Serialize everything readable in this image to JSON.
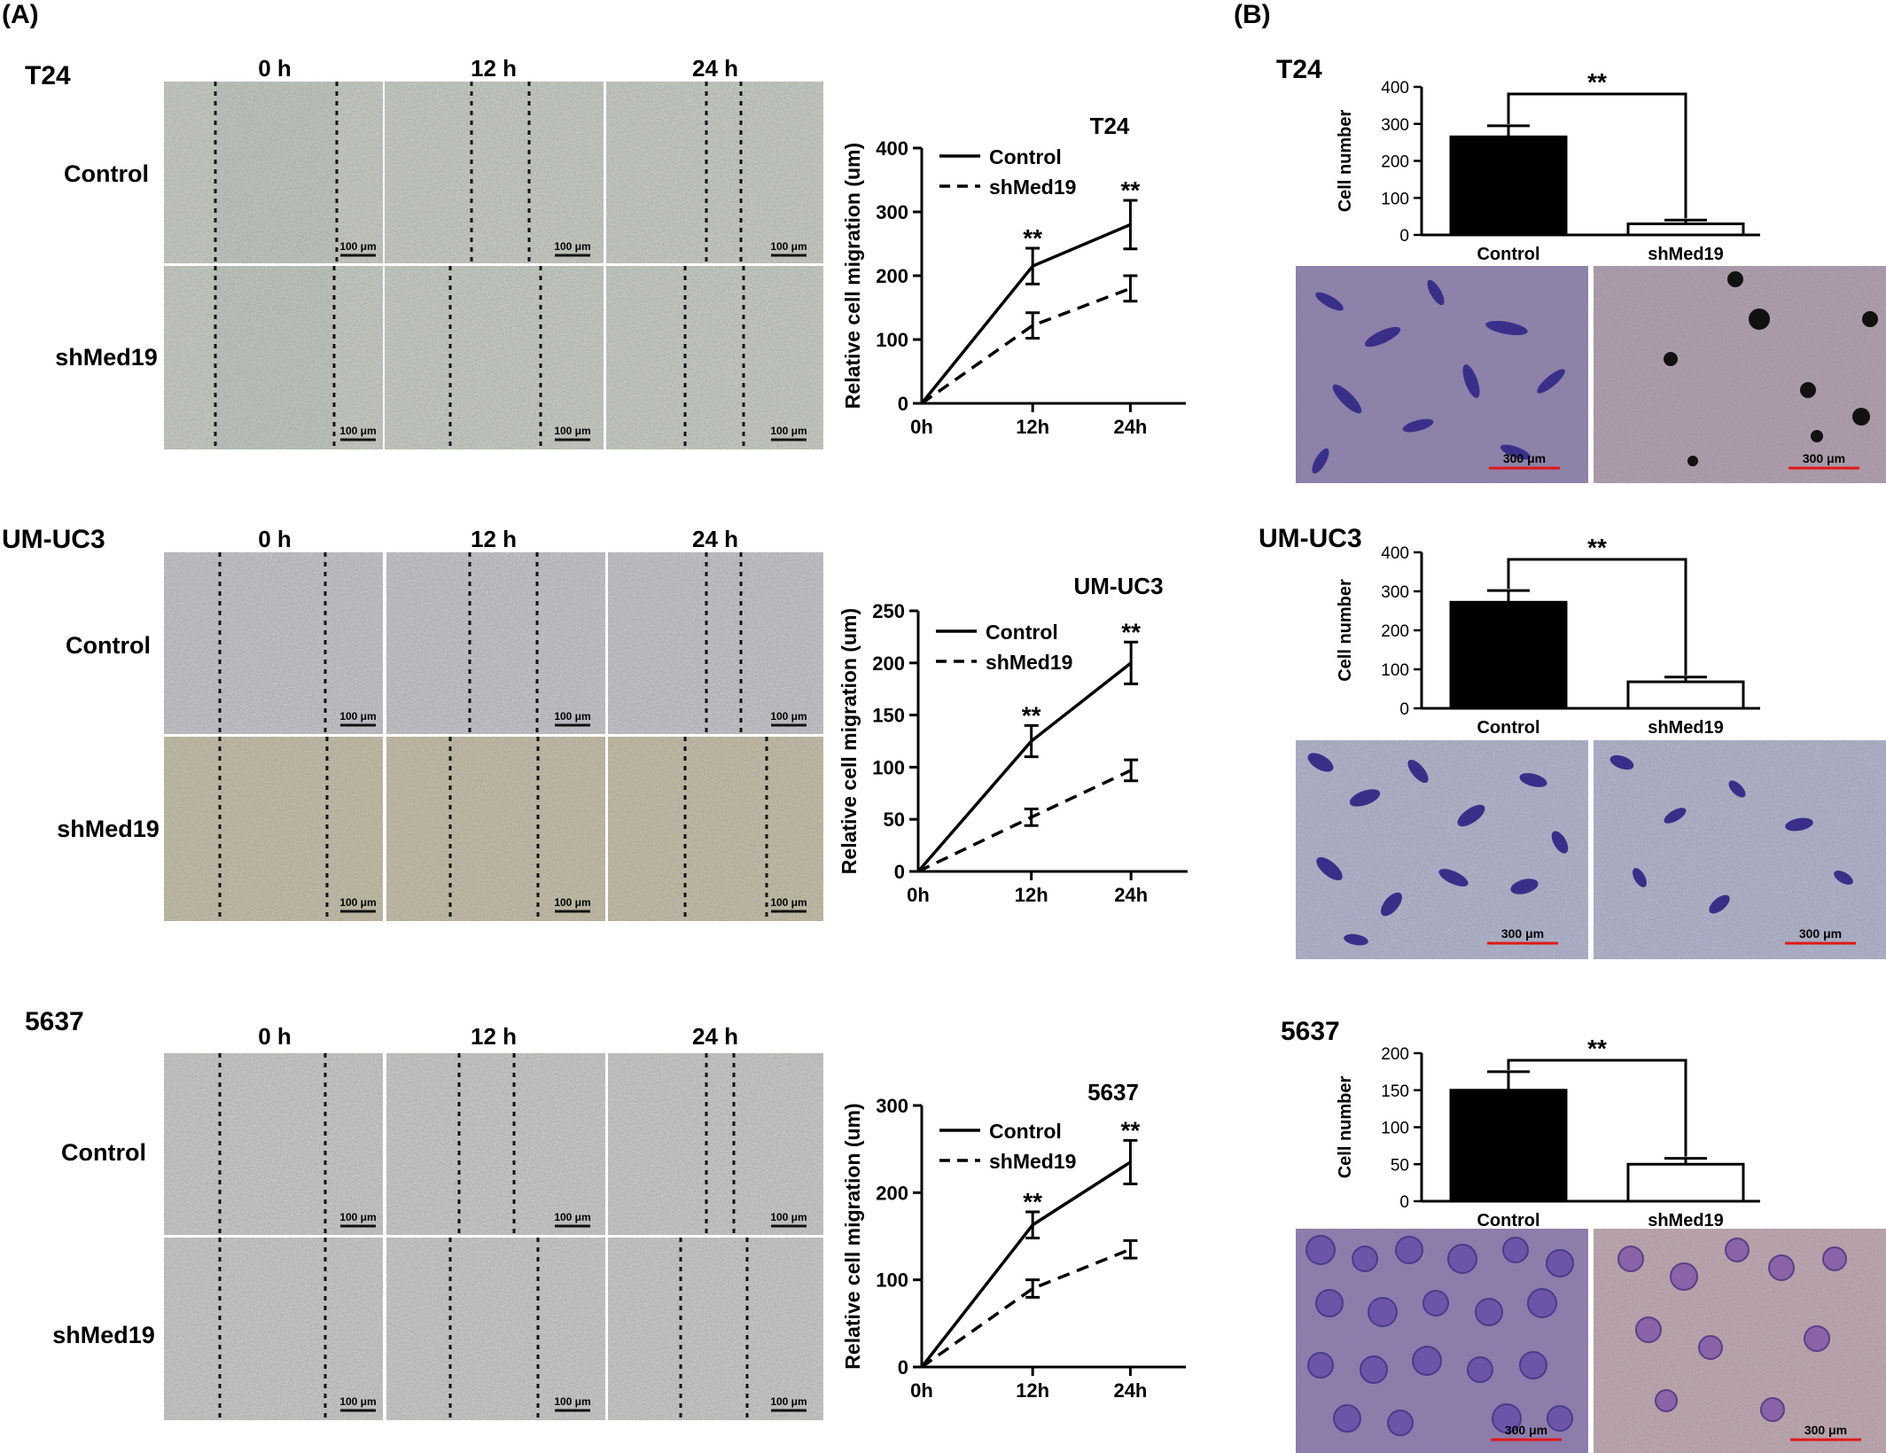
{
  "panel_labels": {
    "a": "(A)",
    "b": "(B)"
  },
  "wound_timepoints": [
    "0 h",
    "12 h",
    "24 h"
  ],
  "conditions": [
    "Control",
    "shMed19"
  ],
  "scale_bar_wound": "100 μm",
  "scale_bar_transwell": "300 μm",
  "colors": {
    "t24_wound": "#ccd3c8",
    "t24_wound_gap": "#c4cdc4",
    "umuc3_ctrl": "#c9cbd0",
    "umuc3_sh": "#c9c3a8",
    "w5637": "#cfd0cd",
    "t24_tw_ctrl": "#8f7fb5",
    "t24_tw_sh": "#b6a0b4",
    "umuc3_tw": "#b4b8d6",
    "w5637_tw_ctrl": "#8e78b8",
    "w5637_tw_sh": "#c6aab6",
    "stain_dark": "#3a2f88",
    "scale_red": "#e01818"
  },
  "cell_lines": [
    {
      "name": "T24"
    },
    {
      "name": "UM-UC3"
    },
    {
      "name": "5637"
    }
  ],
  "chart_data": [
    {
      "type": "line",
      "title": "T24",
      "x": [
        "0h",
        "12h",
        "24h"
      ],
      "ylabel": "Relative cell migration (um)",
      "ylim": [
        0,
        400
      ],
      "yticks": [
        0,
        100,
        200,
        300,
        400
      ],
      "series": [
        {
          "name": "Control",
          "values": [
            0,
            215,
            280
          ],
          "errors": [
            0,
            28,
            38
          ],
          "style": "solid"
        },
        {
          "name": "shMed19",
          "values": [
            0,
            122,
            180
          ],
          "errors": [
            0,
            20,
            20
          ],
          "style": "dashed"
        }
      ],
      "annotations": [
        {
          "x": "12h",
          "text": "**"
        },
        {
          "x": "24h",
          "text": "**"
        }
      ],
      "legend": "top-left"
    },
    {
      "type": "line",
      "title": "UM-UC3",
      "x": [
        "0h",
        "12h",
        "24h"
      ],
      "ylabel": "Relative cell migration (um)",
      "ylim": [
        0,
        250
      ],
      "yticks": [
        0,
        50,
        100,
        150,
        200,
        250
      ],
      "series": [
        {
          "name": "Control",
          "values": [
            0,
            125,
            200
          ],
          "errors": [
            0,
            15,
            20
          ],
          "style": "solid"
        },
        {
          "name": "shMed19",
          "values": [
            0,
            52,
            97
          ],
          "errors": [
            0,
            8,
            10
          ],
          "style": "dashed"
        }
      ],
      "annotations": [
        {
          "x": "12h",
          "text": "**"
        },
        {
          "x": "24h",
          "text": "**"
        }
      ],
      "legend": "top-left"
    },
    {
      "type": "line",
      "title": "5637",
      "x": [
        "0h",
        "12h",
        "24h"
      ],
      "ylabel": "Relative cell migration (um)",
      "ylim": [
        0,
        300
      ],
      "yticks": [
        0,
        100,
        200,
        300
      ],
      "series": [
        {
          "name": "Control",
          "values": [
            0,
            163,
            235
          ],
          "errors": [
            0,
            15,
            25
          ],
          "style": "solid"
        },
        {
          "name": "shMed19",
          "values": [
            0,
            90,
            135
          ],
          "errors": [
            0,
            10,
            10
          ],
          "style": "dashed"
        }
      ],
      "annotations": [
        {
          "x": "12h",
          "text": "**"
        },
        {
          "x": "24h",
          "text": "**"
        }
      ],
      "legend": "top-left"
    },
    {
      "type": "bar",
      "title": "",
      "categories": [
        "Control",
        "shMed19"
      ],
      "values": [
        265,
        30
      ],
      "errors": [
        30,
        10
      ],
      "ylabel": "Cell number",
      "ylim": [
        0,
        400
      ],
      "yticks": [
        0,
        100,
        200,
        300,
        400
      ],
      "fills": [
        "#000000",
        "#ffffff"
      ],
      "significance": "**"
    },
    {
      "type": "bar",
      "title": "",
      "categories": [
        "Control",
        "shMed19"
      ],
      "values": [
        272,
        68
      ],
      "errors": [
        30,
        12
      ],
      "ylabel": "Cell number",
      "ylim": [
        0,
        400
      ],
      "yticks": [
        0,
        100,
        200,
        300,
        400
      ],
      "fills": [
        "#000000",
        "#ffffff"
      ],
      "significance": "**"
    },
    {
      "type": "bar",
      "title": "",
      "categories": [
        "Control",
        "shMed19"
      ],
      "values": [
        150,
        50
      ],
      "errors": [
        25,
        8
      ],
      "ylabel": "Cell number",
      "ylim": [
        0,
        200
      ],
      "yticks": [
        0,
        50,
        100,
        150,
        200
      ],
      "fills": [
        "#000000",
        "#ffffff"
      ],
      "significance": "**"
    }
  ]
}
